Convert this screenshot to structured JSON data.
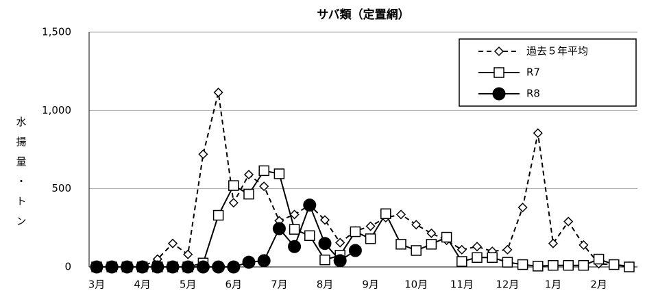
{
  "chart_data": {
    "type": "line",
    "title": "サバ類（定置網）",
    "y_label": "水揚量・トン",
    "categories": [
      "3月",
      null,
      null,
      "4月",
      null,
      null,
      "5月",
      null,
      null,
      "6月",
      null,
      null,
      "7月",
      null,
      null,
      "8月",
      null,
      null,
      "9月",
      null,
      null,
      "10月",
      null,
      null,
      "11月",
      null,
      null,
      "12月",
      null,
      null,
      "1月",
      null,
      null,
      "2月",
      null,
      null
    ],
    "ylim": [
      0,
      1500
    ],
    "yticks": [
      0,
      500,
      {
        "value": 1000,
        "label": "1,000"
      },
      {
        "value": 1500,
        "label": "1,500"
      }
    ],
    "grid": true,
    "legend": "upper right",
    "series": [
      {
        "name": "過去５年平均",
        "color": "#000000",
        "style": "dashed",
        "marker": "diamond",
        "values": [
          0,
          0,
          0,
          0,
          50,
          150,
          80,
          720,
          1115,
          410,
          590,
          515,
          295,
          335,
          395,
          300,
          155,
          230,
          260,
          315,
          335,
          270,
          215,
          170,
          110,
          130,
          100,
          110,
          380,
          855,
          150,
          290,
          140,
          20,
          15,
          5
        ]
      },
      {
        "name": "R7",
        "color": "#000000",
        "style": "solid",
        "marker": "square",
        "values": [
          0,
          0,
          0,
          0,
          0,
          0,
          0,
          25,
          330,
          520,
          465,
          615,
          595,
          240,
          200,
          45,
          75,
          225,
          180,
          340,
          145,
          105,
          145,
          190,
          35,
          60,
          60,
          30,
          15,
          5,
          10,
          10,
          10,
          50,
          15,
          0
        ]
      },
      {
        "name": "R8",
        "color": "#000000",
        "style": "solid",
        "marker": "circle",
        "values": [
          0,
          0,
          0,
          0,
          0,
          0,
          0,
          0,
          0,
          0,
          30,
          40,
          245,
          130,
          395,
          150,
          40,
          105,
          null,
          null,
          null,
          null,
          null,
          null,
          null,
          null,
          null,
          null,
          null,
          null,
          null,
          null,
          null,
          null,
          null,
          null
        ]
      }
    ]
  }
}
